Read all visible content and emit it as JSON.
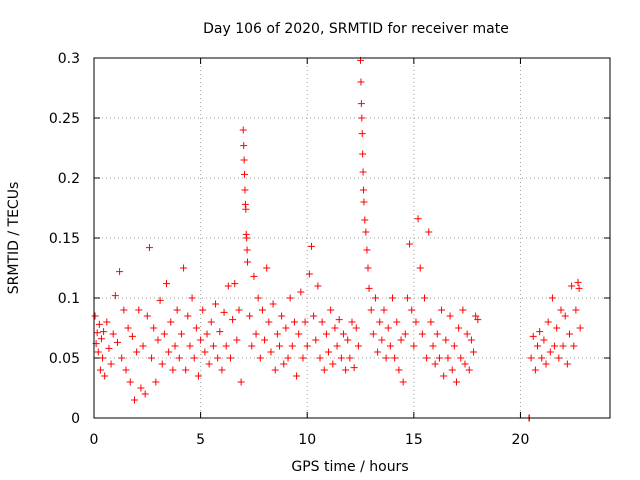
{
  "chart_data": {
    "type": "scatter",
    "title": "Day 106 of 2020, SRMTID for receiver mate",
    "xlabel": "GPS time / hours",
    "ylabel": "SRMTID / TECUs",
    "xlim": [
      0,
      24.2
    ],
    "ylim": [
      0,
      0.3
    ],
    "x_ticks": [
      0,
      5,
      10,
      15,
      20
    ],
    "x_tick_labels": [
      "0",
      "5",
      "10",
      "15",
      "20"
    ],
    "y_ticks": [
      0,
      0.05,
      0.1,
      0.15,
      0.2,
      0.25,
      0.3
    ],
    "y_tick_labels": [
      "0",
      "0.05",
      "0.1",
      "0.15",
      "0.2",
      "0.25",
      "0.3"
    ],
    "grid": true,
    "marker": "+",
    "color": "#ff0000",
    "series": [
      {
        "name": "SRMTID",
        "points": [
          [
            0.05,
            0.085
          ],
          [
            0.1,
            0.062
          ],
          [
            0.15,
            0.071
          ],
          [
            0.2,
            0.055
          ],
          [
            0.25,
            0.078
          ],
          [
            0.3,
            0.04
          ],
          [
            0.35,
            0.066
          ],
          [
            0.4,
            0.05
          ],
          [
            0.45,
            0.072
          ],
          [
            0.5,
            0.035
          ],
          [
            0.6,
            0.08
          ],
          [
            0.7,
            0.058
          ],
          [
            0.8,
            0.045
          ],
          [
            0.9,
            0.07
          ],
          [
            1.0,
            0.102
          ],
          [
            1.1,
            0.063
          ],
          [
            1.2,
            0.122
          ],
          [
            1.3,
            0.05
          ],
          [
            1.4,
            0.09
          ],
          [
            1.5,
            0.04
          ],
          [
            1.6,
            0.075
          ],
          [
            1.7,
            0.03
          ],
          [
            1.8,
            0.068
          ],
          [
            1.9,
            0.015
          ],
          [
            2.0,
            0.055
          ],
          [
            2.1,
            0.09
          ],
          [
            2.2,
            0.025
          ],
          [
            2.3,
            0.06
          ],
          [
            2.4,
            0.02
          ],
          [
            2.5,
            0.085
          ],
          [
            2.6,
            0.142
          ],
          [
            2.7,
            0.05
          ],
          [
            2.8,
            0.075
          ],
          [
            2.9,
            0.03
          ],
          [
            3.0,
            0.065
          ],
          [
            3.1,
            0.098
          ],
          [
            3.2,
            0.045
          ],
          [
            3.3,
            0.07
          ],
          [
            3.4,
            0.112
          ],
          [
            3.5,
            0.055
          ],
          [
            3.6,
            0.08
          ],
          [
            3.7,
            0.04
          ],
          [
            3.8,
            0.06
          ],
          [
            3.9,
            0.09
          ],
          [
            4.0,
            0.05
          ],
          [
            4.1,
            0.07
          ],
          [
            4.2,
            0.125
          ],
          [
            4.3,
            0.04
          ],
          [
            4.4,
            0.085
          ],
          [
            4.5,
            0.06
          ],
          [
            4.6,
            0.1
          ],
          [
            4.7,
            0.05
          ],
          [
            4.8,
            0.075
          ],
          [
            4.9,
            0.035
          ],
          [
            5.0,
            0.065
          ],
          [
            5.1,
            0.09
          ],
          [
            5.2,
            0.055
          ],
          [
            5.3,
            0.07
          ],
          [
            5.4,
            0.045
          ],
          [
            5.5,
            0.08
          ],
          [
            5.6,
            0.06
          ],
          [
            5.7,
            0.095
          ],
          [
            5.8,
            0.05
          ],
          [
            5.9,
            0.072
          ],
          [
            6.0,
            0.04
          ],
          [
            6.1,
            0.088
          ],
          [
            6.2,
            0.06
          ],
          [
            6.3,
            0.11
          ],
          [
            6.4,
            0.05
          ],
          [
            6.5,
            0.082
          ],
          [
            6.6,
            0.112
          ],
          [
            6.7,
            0.065
          ],
          [
            6.8,
            0.09
          ],
          [
            6.9,
            0.03
          ],
          [
            7.0,
            0.24
          ],
          [
            7.02,
            0.227
          ],
          [
            7.04,
            0.215
          ],
          [
            7.06,
            0.203
          ],
          [
            7.08,
            0.19
          ],
          [
            7.1,
            0.178
          ],
          [
            7.12,
            0.174
          ],
          [
            7.14,
            0.153
          ],
          [
            7.16,
            0.15
          ],
          [
            7.18,
            0.14
          ],
          [
            7.2,
            0.13
          ],
          [
            7.3,
            0.085
          ],
          [
            7.4,
            0.06
          ],
          [
            7.5,
            0.118
          ],
          [
            7.6,
            0.07
          ],
          [
            7.7,
            0.1
          ],
          [
            7.8,
            0.05
          ],
          [
            7.9,
            0.09
          ],
          [
            8.0,
            0.065
          ],
          [
            8.1,
            0.125
          ],
          [
            8.2,
            0.08
          ],
          [
            8.3,
            0.055
          ],
          [
            8.4,
            0.095
          ],
          [
            8.5,
            0.04
          ],
          [
            8.6,
            0.07
          ],
          [
            8.7,
            0.06
          ],
          [
            8.8,
            0.085
          ],
          [
            8.9,
            0.045
          ],
          [
            9.0,
            0.075
          ],
          [
            9.1,
            0.05
          ],
          [
            9.2,
            0.1
          ],
          [
            9.3,
            0.06
          ],
          [
            9.4,
            0.08
          ],
          [
            9.5,
            0.035
          ],
          [
            9.6,
            0.07
          ],
          [
            9.7,
            0.105
          ],
          [
            9.8,
            0.05
          ],
          [
            9.9,
            0.08
          ],
          [
            10.0,
            0.06
          ],
          [
            10.1,
            0.12
          ],
          [
            10.2,
            0.143
          ],
          [
            10.3,
            0.085
          ],
          [
            10.4,
            0.065
          ],
          [
            10.5,
            0.11
          ],
          [
            10.6,
            0.05
          ],
          [
            10.7,
            0.08
          ],
          [
            10.8,
            0.04
          ],
          [
            10.9,
            0.07
          ],
          [
            11.0,
            0.055
          ],
          [
            11.1,
            0.09
          ],
          [
            11.2,
            0.045
          ],
          [
            11.3,
            0.075
          ],
          [
            11.4,
            0.06
          ],
          [
            11.5,
            0.082
          ],
          [
            11.6,
            0.05
          ],
          [
            11.7,
            0.07
          ],
          [
            11.8,
            0.04
          ],
          [
            11.9,
            0.065
          ],
          [
            12.0,
            0.05
          ],
          [
            12.1,
            0.08
          ],
          [
            12.2,
            0.042
          ],
          [
            12.3,
            0.075
          ],
          [
            12.4,
            0.06
          ],
          [
            12.5,
            0.298
          ],
          [
            12.52,
            0.28
          ],
          [
            12.54,
            0.262
          ],
          [
            12.56,
            0.25
          ],
          [
            12.58,
            0.237
          ],
          [
            12.6,
            0.22
          ],
          [
            12.62,
            0.205
          ],
          [
            12.64,
            0.19
          ],
          [
            12.66,
            0.18
          ],
          [
            12.7,
            0.165
          ],
          [
            12.75,
            0.155
          ],
          [
            12.8,
            0.14
          ],
          [
            12.85,
            0.125
          ],
          [
            12.9,
            0.108
          ],
          [
            13.0,
            0.09
          ],
          [
            13.1,
            0.07
          ],
          [
            13.2,
            0.1
          ],
          [
            13.3,
            0.055
          ],
          [
            13.4,
            0.08
          ],
          [
            13.5,
            0.065
          ],
          [
            13.6,
            0.09
          ],
          [
            13.7,
            0.05
          ],
          [
            13.8,
            0.075
          ],
          [
            13.9,
            0.06
          ],
          [
            14.0,
            0.1
          ],
          [
            14.1,
            0.05
          ],
          [
            14.2,
            0.08
          ],
          [
            14.3,
            0.04
          ],
          [
            14.4,
            0.065
          ],
          [
            14.5,
            0.03
          ],
          [
            14.6,
            0.07
          ],
          [
            14.7,
            0.1
          ],
          [
            14.8,
            0.145
          ],
          [
            14.9,
            0.09
          ],
          [
            15.0,
            0.06
          ],
          [
            15.1,
            0.08
          ],
          [
            15.2,
            0.166
          ],
          [
            15.3,
            0.125
          ],
          [
            15.4,
            0.07
          ],
          [
            15.5,
            0.1
          ],
          [
            15.6,
            0.05
          ],
          [
            15.7,
            0.155
          ],
          [
            15.8,
            0.08
          ],
          [
            15.9,
            0.06
          ],
          [
            16.0,
            0.045
          ],
          [
            16.1,
            0.07
          ],
          [
            16.2,
            0.05
          ],
          [
            16.3,
            0.09
          ],
          [
            16.4,
            0.035
          ],
          [
            16.5,
            0.065
          ],
          [
            16.6,
            0.05
          ],
          [
            16.7,
            0.085
          ],
          [
            16.8,
            0.04
          ],
          [
            16.9,
            0.06
          ],
          [
            17.0,
            0.03
          ],
          [
            17.1,
            0.075
          ],
          [
            17.2,
            0.05
          ],
          [
            17.3,
            0.09
          ],
          [
            17.4,
            0.045
          ],
          [
            17.5,
            0.07
          ],
          [
            17.6,
            0.04
          ],
          [
            17.7,
            0.065
          ],
          [
            17.8,
            0.055
          ],
          [
            17.9,
            0.085
          ],
          [
            18.0,
            0.082
          ],
          [
            20.4,
            0.0
          ],
          [
            20.42,
            0.0
          ],
          [
            20.5,
            0.05
          ],
          [
            20.6,
            0.068
          ],
          [
            20.7,
            0.04
          ],
          [
            20.8,
            0.06
          ],
          [
            20.9,
            0.072
          ],
          [
            21.0,
            0.05
          ],
          [
            21.1,
            0.065
          ],
          [
            21.2,
            0.045
          ],
          [
            21.3,
            0.08
          ],
          [
            21.4,
            0.055
          ],
          [
            21.5,
            0.1
          ],
          [
            21.6,
            0.06
          ],
          [
            21.7,
            0.075
          ],
          [
            21.8,
            0.05
          ],
          [
            21.9,
            0.09
          ],
          [
            22.0,
            0.06
          ],
          [
            22.1,
            0.085
          ],
          [
            22.2,
            0.045
          ],
          [
            22.3,
            0.07
          ],
          [
            22.4,
            0.11
          ],
          [
            22.5,
            0.06
          ],
          [
            22.6,
            0.09
          ],
          [
            22.7,
            0.113
          ],
          [
            22.75,
            0.108
          ],
          [
            22.8,
            0.075
          ]
        ]
      }
    ]
  }
}
